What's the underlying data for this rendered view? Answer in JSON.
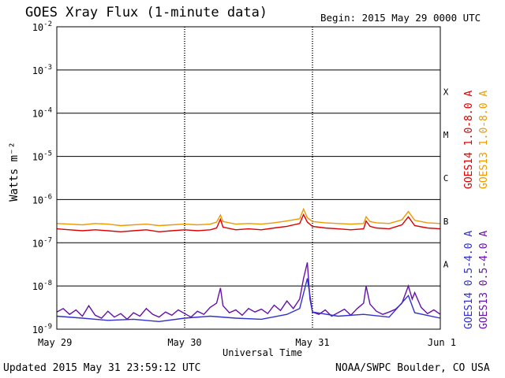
{
  "header": {
    "title": "GOES Xray Flux (1-minute data)",
    "begin": "Begin:  2015 May 29 0000 UTC"
  },
  "footer": {
    "updated": "Updated 2015 May 31 23:59:12 UTC",
    "credit": "NOAA/SWPC Boulder, CO USA"
  },
  "colors": {
    "goes14_long": "#dd0000",
    "goes13_long": "#ee9900",
    "goes14_short": "#3030cc",
    "goes13_short": "#6611aa"
  },
  "chart_data": {
    "type": "line",
    "title": "GOES Xray Flux (1-minute data)",
    "xlabel": "Universal Time",
    "ylabel": "Watts m⁻²",
    "y_scale": "log",
    "ylim": [
      1e-09,
      0.01
    ],
    "xlim_days": [
      0,
      3
    ],
    "grid": true,
    "legend": "right, vertical",
    "categories": [
      "May 29",
      "May 30",
      "May 31",
      "Jun 1"
    ],
    "y_ticks": [
      {
        "mant": "10",
        "exp": "-2"
      },
      {
        "mant": "10",
        "exp": "-3"
      },
      {
        "mant": "10",
        "exp": "-4"
      },
      {
        "mant": "10",
        "exp": "-5"
      },
      {
        "mant": "10",
        "exp": "-6"
      },
      {
        "mant": "10",
        "exp": "-7"
      },
      {
        "mant": "10",
        "exp": "-8"
      },
      {
        "mant": "10",
        "exp": "-9"
      }
    ],
    "flare_classes": [
      {
        "label": "X",
        "log": -3.5
      },
      {
        "label": "M",
        "log": -4.5
      },
      {
        "label": "C",
        "log": -5.5
      },
      {
        "label": "B",
        "log": -6.5
      },
      {
        "label": "A",
        "log": -7.5
      }
    ],
    "series": [
      {
        "name": "GOES14 1.0-8.0 A",
        "color": "#dd0000",
        "x": [
          0.0,
          0.1,
          0.2,
          0.3,
          0.4,
          0.5,
          0.6,
          0.7,
          0.8,
          0.9,
          1.0,
          1.1,
          1.2,
          1.25,
          1.28,
          1.3,
          1.4,
          1.5,
          1.6,
          1.7,
          1.8,
          1.9,
          1.93,
          1.96,
          2.0,
          2.1,
          2.2,
          2.3,
          2.4,
          2.42,
          2.45,
          2.5,
          2.6,
          2.7,
          2.75,
          2.8,
          2.9,
          3.0
        ],
        "y": [
          2.1e-07,
          2e-07,
          1.9e-07,
          2e-07,
          1.9e-07,
          1.8e-07,
          1.9e-07,
          2e-07,
          1.8e-07,
          1.9e-07,
          2e-07,
          1.9e-07,
          2e-07,
          2.2e-07,
          3.5e-07,
          2.3e-07,
          2e-07,
          2.1e-07,
          2e-07,
          2.2e-07,
          2.4e-07,
          2.8e-07,
          4.5e-07,
          3e-07,
          2.4e-07,
          2.2e-07,
          2.1e-07,
          2e-07,
          2.1e-07,
          3.2e-07,
          2.4e-07,
          2.2e-07,
          2.1e-07,
          2.6e-07,
          4e-07,
          2.5e-07,
          2.2e-07,
          2.1e-07
        ]
      },
      {
        "name": "GOES13 1.0-8.0 A",
        "color": "#ee9900",
        "x": [
          0.0,
          0.1,
          0.2,
          0.3,
          0.4,
          0.5,
          0.6,
          0.7,
          0.8,
          0.9,
          1.0,
          1.1,
          1.2,
          1.25,
          1.28,
          1.3,
          1.4,
          1.5,
          1.6,
          1.7,
          1.8,
          1.9,
          1.93,
          1.96,
          2.0,
          2.1,
          2.2,
          2.3,
          2.4,
          2.42,
          2.45,
          2.5,
          2.6,
          2.7,
          2.75,
          2.8,
          2.9,
          3.0
        ],
        "y": [
          2.8e-07,
          2.7e-07,
          2.6e-07,
          2.8e-07,
          2.7e-07,
          2.5e-07,
          2.6e-07,
          2.7e-07,
          2.5e-07,
          2.6e-07,
          2.7e-07,
          2.6e-07,
          2.7e-07,
          3e-07,
          4.4e-07,
          3.1e-07,
          2.7e-07,
          2.8e-07,
          2.7e-07,
          2.9e-07,
          3.2e-07,
          3.6e-07,
          6e-07,
          3.8e-07,
          3.1e-07,
          2.9e-07,
          2.8e-07,
          2.7e-07,
          2.8e-07,
          4e-07,
          3.1e-07,
          2.9e-07,
          2.8e-07,
          3.4e-07,
          5.3e-07,
          3.3e-07,
          2.9e-07,
          2.8e-07
        ]
      },
      {
        "name": "GOES14 0.5-4.0 A",
        "color": "#3030cc",
        "x": [
          0.0,
          0.2,
          0.4,
          0.6,
          0.8,
          1.0,
          1.2,
          1.4,
          1.6,
          1.8,
          1.9,
          1.96,
          2.0,
          2.2,
          2.4,
          2.6,
          2.75,
          2.8,
          3.0
        ],
        "y": [
          2e-09,
          1.8e-09,
          1.6e-09,
          1.7e-09,
          1.5e-09,
          1.8e-09,
          2e-09,
          1.8e-09,
          1.7e-09,
          2.2e-09,
          3e-09,
          1.5e-08,
          2.5e-09,
          2e-09,
          2.2e-09,
          1.9e-09,
          6e-09,
          2.4e-09,
          1.8e-09
        ]
      },
      {
        "name": "GOES13 0.5-4.0 A",
        "color": "#6611aa",
        "x": [
          0.0,
          0.05,
          0.1,
          0.15,
          0.2,
          0.25,
          0.3,
          0.35,
          0.4,
          0.45,
          0.5,
          0.55,
          0.6,
          0.65,
          0.7,
          0.75,
          0.8,
          0.85,
          0.9,
          0.95,
          1.0,
          1.05,
          1.1,
          1.15,
          1.2,
          1.25,
          1.28,
          1.3,
          1.35,
          1.4,
          1.45,
          1.5,
          1.55,
          1.6,
          1.65,
          1.7,
          1.75,
          1.8,
          1.85,
          1.9,
          1.93,
          1.96,
          1.98,
          2.0,
          2.05,
          2.1,
          2.15,
          2.2,
          2.25,
          2.3,
          2.35,
          2.4,
          2.42,
          2.45,
          2.5,
          2.55,
          2.6,
          2.65,
          2.7,
          2.75,
          2.78,
          2.8,
          2.85,
          2.9,
          2.95,
          3.0
        ],
        "y": [
          2.5e-09,
          3e-09,
          2.2e-09,
          2.8e-09,
          2e-09,
          3.5e-09,
          2.1e-09,
          1.8e-09,
          2.6e-09,
          1.9e-09,
          2.3e-09,
          1.7e-09,
          2.4e-09,
          2e-09,
          3e-09,
          2.2e-09,
          1.9e-09,
          2.5e-09,
          2.1e-09,
          2.8e-09,
          2.3e-09,
          1.9e-09,
          2.6e-09,
          2.2e-09,
          3.2e-09,
          4e-09,
          9e-09,
          3.5e-09,
          2.4e-09,
          2.8e-09,
          2.1e-09,
          3e-09,
          2.5e-09,
          2.9e-09,
          2.3e-09,
          3.6e-09,
          2.7e-09,
          4.5e-09,
          3e-09,
          5e-09,
          1.5e-08,
          3.5e-08,
          5e-09,
          2.5e-09,
          2.2e-09,
          2.8e-09,
          2e-09,
          2.4e-09,
          2.9e-09,
          2.1e-09,
          3e-09,
          4e-09,
          1e-08,
          3.8e-09,
          2.6e-09,
          2.2e-09,
          2.5e-09,
          2.9e-09,
          4e-09,
          1e-08,
          5e-09,
          7e-09,
          3.2e-09,
          2.3e-09,
          2.8e-09,
          2.2e-09
        ]
      }
    ]
  }
}
